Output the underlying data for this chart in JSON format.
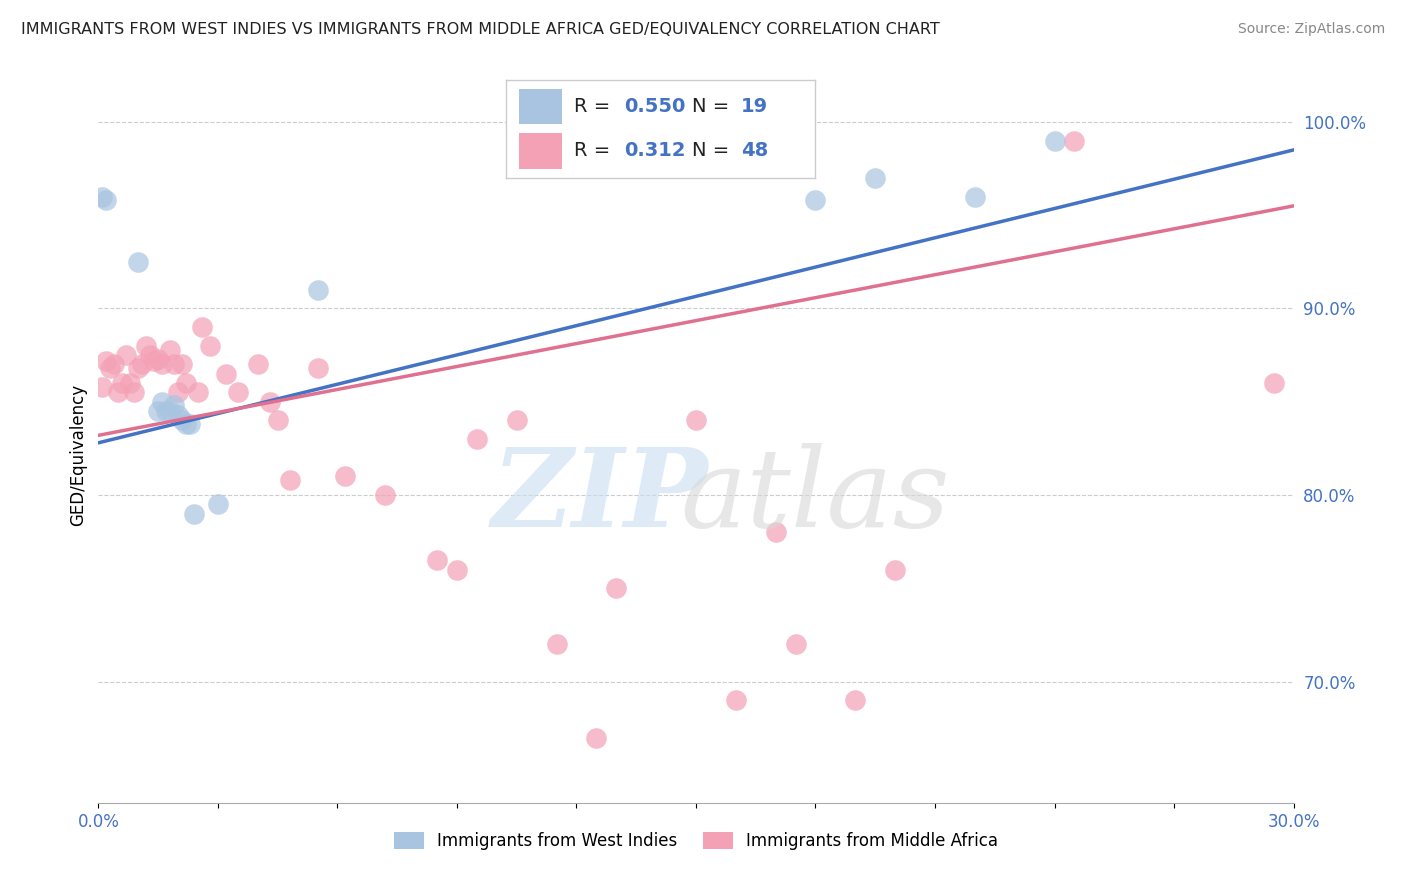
{
  "title": "IMMIGRANTS FROM WEST INDIES VS IMMIGRANTS FROM MIDDLE AFRICA GED/EQUIVALENCY CORRELATION CHART",
  "source": "Source: ZipAtlas.com",
  "ylabel": "GED/Equivalency",
  "xlabel": "",
  "xlim": [
    0.0,
    0.3
  ],
  "ylim": [
    0.635,
    1.008
  ],
  "blue_R": 0.55,
  "blue_N": 19,
  "pink_R": 0.312,
  "pink_N": 48,
  "blue_color": "#a8c4e0",
  "pink_color": "#f4a0b5",
  "blue_line_color": "#4472c4",
  "pink_line_color": "#e07090",
  "west_indies_x": [
    0.001,
    0.002,
    0.01,
    0.015,
    0.016,
    0.017,
    0.018,
    0.019,
    0.02,
    0.021,
    0.022,
    0.023,
    0.024,
    0.03,
    0.055,
    0.18,
    0.195,
    0.22,
    0.24
  ],
  "west_indies_y": [
    0.96,
    0.958,
    0.925,
    0.845,
    0.85,
    0.845,
    0.845,
    0.848,
    0.843,
    0.84,
    0.838,
    0.838,
    0.79,
    0.795,
    0.91,
    0.958,
    0.97,
    0.96,
    0.99
  ],
  "middle_africa_x": [
    0.001,
    0.002,
    0.003,
    0.004,
    0.005,
    0.006,
    0.007,
    0.008,
    0.009,
    0.01,
    0.011,
    0.012,
    0.013,
    0.014,
    0.015,
    0.016,
    0.018,
    0.019,
    0.02,
    0.021,
    0.022,
    0.025,
    0.026,
    0.028,
    0.032,
    0.035,
    0.04,
    0.043,
    0.045,
    0.048,
    0.055,
    0.062,
    0.072,
    0.085,
    0.09,
    0.095,
    0.105,
    0.115,
    0.125,
    0.13,
    0.15,
    0.16,
    0.17,
    0.175,
    0.19,
    0.2,
    0.245,
    0.295
  ],
  "middle_africa_y": [
    0.858,
    0.872,
    0.868,
    0.87,
    0.855,
    0.86,
    0.875,
    0.86,
    0.855,
    0.868,
    0.87,
    0.88,
    0.875,
    0.872,
    0.873,
    0.87,
    0.878,
    0.87,
    0.855,
    0.87,
    0.86,
    0.855,
    0.89,
    0.88,
    0.865,
    0.855,
    0.87,
    0.85,
    0.84,
    0.808,
    0.868,
    0.81,
    0.8,
    0.765,
    0.76,
    0.83,
    0.84,
    0.72,
    0.67,
    0.75,
    0.84,
    0.69,
    0.78,
    0.72,
    0.69,
    0.76,
    0.99,
    0.86
  ],
  "blue_line_x": [
    0.0,
    0.3
  ],
  "blue_line_y": [
    0.828,
    0.985
  ],
  "pink_line_x": [
    0.0,
    0.3
  ],
  "pink_line_y": [
    0.832,
    0.955
  ],
  "yticks": [
    0.7,
    0.8,
    0.9,
    1.0
  ],
  "ytick_labels": [
    "70.0%",
    "80.0%",
    "90.0%",
    "100.0%"
  ],
  "xtick_positions": [
    0.0,
    0.3
  ],
  "xtick_labels_ends": [
    "0.0%",
    "30.0%"
  ],
  "grid_color": "#cccccc",
  "background_color": "#ffffff",
  "legend_label_blue": "Immigrants from West Indies",
  "legend_label_pink": "Immigrants from Middle Africa"
}
